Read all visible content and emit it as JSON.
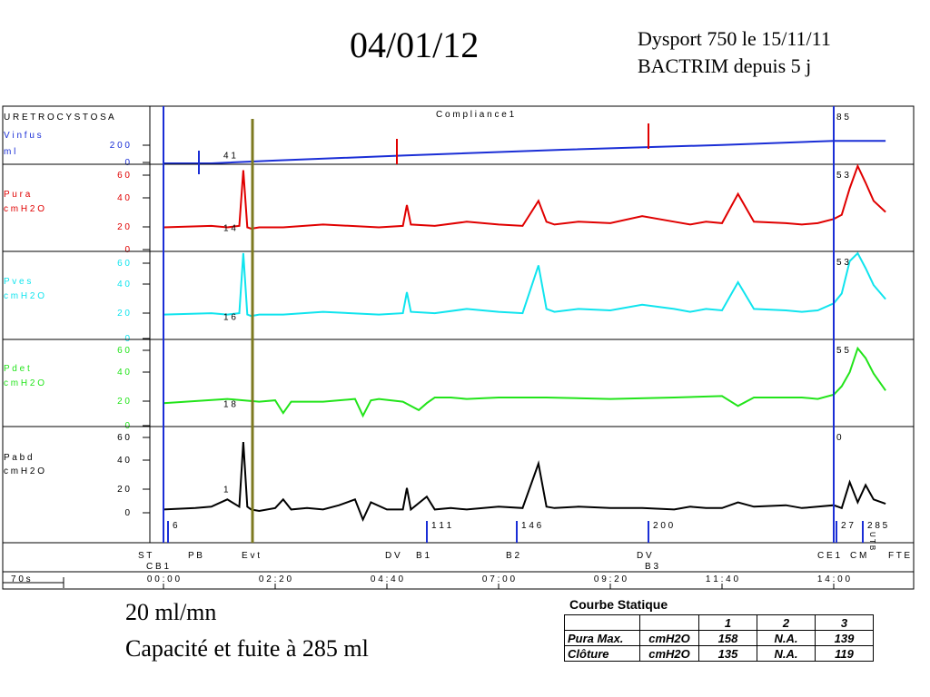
{
  "page": {
    "title": "04/01/12",
    "notes": [
      "Dysport 750  le 15/11/11",
      "BACTRIM depuis 5 j"
    ],
    "captions": [
      "20 ml/mn",
      "Capacité et fuite à 285 ml"
    ]
  },
  "chart_data": {
    "type": "line",
    "header": "U R E T R O C Y S T O   S A",
    "compliance_label": "C o m p l i a n c e   1",
    "time_scale_label": "7 0  s",
    "x": {
      "unit": "mm:ss",
      "ticks": [
        "0 0 : 0 0",
        "0 2 : 2 0",
        "0 4 : 4 0",
        "0 7 : 0 0",
        "0 9 : 2 0",
        "1 1 : 4 0",
        "1 4 : 0 0"
      ],
      "tick_seconds": [
        0,
        140,
        280,
        420,
        560,
        700,
        840
      ]
    },
    "channels": [
      {
        "name": "Vinfus",
        "label1": "V i n f u s",
        "label2": "m l",
        "color": "#1a2ed6",
        "ticks": [
          "2 0 0",
          "0"
        ],
        "tick_values": [
          200,
          0
        ],
        "ylim": [
          0,
          300
        ],
        "markers": [
          "4 1",
          "8 5"
        ],
        "x": [
          0,
          60,
          140,
          300,
          500,
          700,
          840,
          905
        ],
        "y": [
          0,
          0,
          19,
          45,
          75,
          100,
          121,
          121
        ]
      },
      {
        "name": "Pura",
        "label1": "P u r a",
        "label2": "c m  H 2 O",
        "color": "#e00000",
        "ticks": [
          "6 0",
          "4 0",
          "2 0",
          "0"
        ],
        "tick_values": [
          60,
          40,
          20,
          0
        ],
        "ylim": [
          0,
          60
        ],
        "markers": [
          "1 4",
          "5 3"
        ],
        "x": [
          0,
          60,
          80,
          95,
          100,
          105,
          110,
          120,
          150,
          200,
          270,
          300,
          305,
          310,
          340,
          380,
          420,
          450,
          470,
          480,
          490,
          520,
          560,
          600,
          640,
          660,
          680,
          700,
          720,
          740,
          780,
          800,
          820,
          840,
          850,
          860,
          870,
          880,
          890,
          905
        ],
        "y": [
          16,
          17,
          16,
          17,
          57,
          16,
          15,
          16,
          16,
          18,
          16,
          17,
          32,
          18,
          17,
          20,
          18,
          17,
          35,
          20,
          18,
          20,
          19,
          24,
          20,
          18,
          20,
          19,
          40,
          20,
          19,
          18,
          19,
          22,
          25,
          44,
          63,
          48,
          35,
          27
        ]
      },
      {
        "name": "Pves",
        "label1": "P v e s",
        "label2": "c m  H 2 O",
        "color": "#10e4ee",
        "ticks": [
          "6 0",
          "4 0",
          "2 0",
          "0"
        ],
        "tick_values": [
          60,
          40,
          20,
          0
        ],
        "ylim": [
          0,
          60
        ],
        "markers": [
          "1 6",
          "5 3"
        ],
        "x": [
          0,
          60,
          80,
          95,
          100,
          105,
          110,
          120,
          150,
          200,
          270,
          300,
          305,
          310,
          340,
          380,
          420,
          450,
          470,
          480,
          490,
          520,
          560,
          600,
          640,
          660,
          680,
          700,
          720,
          740,
          780,
          800,
          820,
          840,
          850,
          860,
          870,
          880,
          890,
          905
        ],
        "y": [
          17,
          18,
          17,
          18,
          63,
          17,
          16,
          17,
          17,
          19,
          17,
          18,
          33,
          19,
          18,
          21,
          19,
          18,
          52,
          21,
          19,
          21,
          20,
          24,
          21,
          19,
          21,
          20,
          40,
          21,
          20,
          19,
          20,
          25,
          32,
          55,
          62,
          50,
          38,
          28
        ]
      },
      {
        "name": "Pdet",
        "label1": "P d e t",
        "label2": "c m  H 2 O",
        "color": "#22e41a",
        "ticks": [
          "6 0",
          "4 0",
          "2 0",
          "0"
        ],
        "tick_values": [
          60,
          40,
          20,
          0
        ],
        "ylim": [
          0,
          60
        ],
        "markers": [
          "1 8",
          "5 5"
        ],
        "x": [
          0,
          80,
          100,
          120,
          140,
          150,
          160,
          200,
          240,
          250,
          260,
          270,
          300,
          320,
          330,
          340,
          360,
          380,
          420,
          480,
          560,
          640,
          700,
          720,
          740,
          800,
          820,
          840,
          850,
          860,
          870,
          880,
          890,
          905
        ],
        "y": [
          16,
          19,
          18,
          17,
          18,
          9,
          17,
          17,
          19,
          7,
          18,
          19,
          17,
          11,
          16,
          20,
          20,
          19,
          20,
          20,
          19,
          20,
          21,
          14,
          20,
          20,
          19,
          22,
          28,
          38,
          55,
          48,
          37,
          25
        ]
      },
      {
        "name": "Pabd",
        "label1": "P a b d",
        "label2": "c m  H 2 O",
        "color": "#000000",
        "ticks": [
          "6 0",
          "4 0",
          "2 0",
          "0"
        ],
        "tick_values": [
          60,
          40,
          20,
          0
        ],
        "ylim": [
          0,
          60
        ],
        "markers": [
          "1",
          "0"
        ],
        "x": [
          0,
          40,
          60,
          80,
          95,
          100,
          105,
          110,
          120,
          140,
          150,
          160,
          180,
          200,
          220,
          240,
          250,
          260,
          280,
          300,
          305,
          310,
          330,
          340,
          360,
          380,
          420,
          450,
          470,
          480,
          490,
          520,
          560,
          600,
          640,
          660,
          680,
          700,
          720,
          740,
          780,
          800,
          820,
          840,
          850,
          860,
          870,
          880,
          890,
          905
        ],
        "y": [
          1,
          2,
          3,
          8,
          3,
          48,
          3,
          1,
          0,
          2,
          8,
          1,
          2,
          1,
          4,
          8,
          -6,
          6,
          1,
          1,
          16,
          1,
          10,
          1,
          2,
          1,
          3,
          2,
          33,
          3,
          2,
          3,
          2,
          2,
          1,
          3,
          2,
          2,
          6,
          3,
          4,
          2,
          3,
          4,
          2,
          20,
          6,
          18,
          8,
          5
        ]
      }
    ],
    "events": [
      {
        "label": "S T",
        "sub": "C B 1",
        "t": 0
      },
      {
        "label": "P B",
        "t": 42
      },
      {
        "label": "E v t",
        "t": 80
      },
      {
        "label": "D V",
        "t": 225
      },
      {
        "label": "B 1",
        "t": 252
      },
      {
        "label": "B 2",
        "t": 338
      },
      {
        "label": "D V",
        "sub": "B 3",
        "t": 463
      },
      {
        "label": "C E 1",
        "t": 650
      },
      {
        "label": "C M",
        "t": 671
      },
      {
        "label": "F T E",
        "t": 700
      }
    ],
    "event_line_labels": [
      "6",
      "1 1 1",
      "1 4 6",
      "2 0 0",
      "2 7",
      "2 8 5"
    ],
    "vertical_marker": "U T B"
  },
  "static_table": {
    "title": "Courbe Statique",
    "header": [
      "",
      "",
      "1",
      "2",
      "3"
    ],
    "rows": [
      [
        "Pura Max.",
        "cmH2O",
        "158",
        "N.A.",
        "139"
      ],
      [
        "Clôture",
        "cmH2O",
        "135",
        "N.A.",
        "119"
      ]
    ]
  },
  "colors": {
    "axis": "#000000",
    "cursor_blue": "#1a2ed6",
    "cursor_olive": "#7d7a20"
  }
}
